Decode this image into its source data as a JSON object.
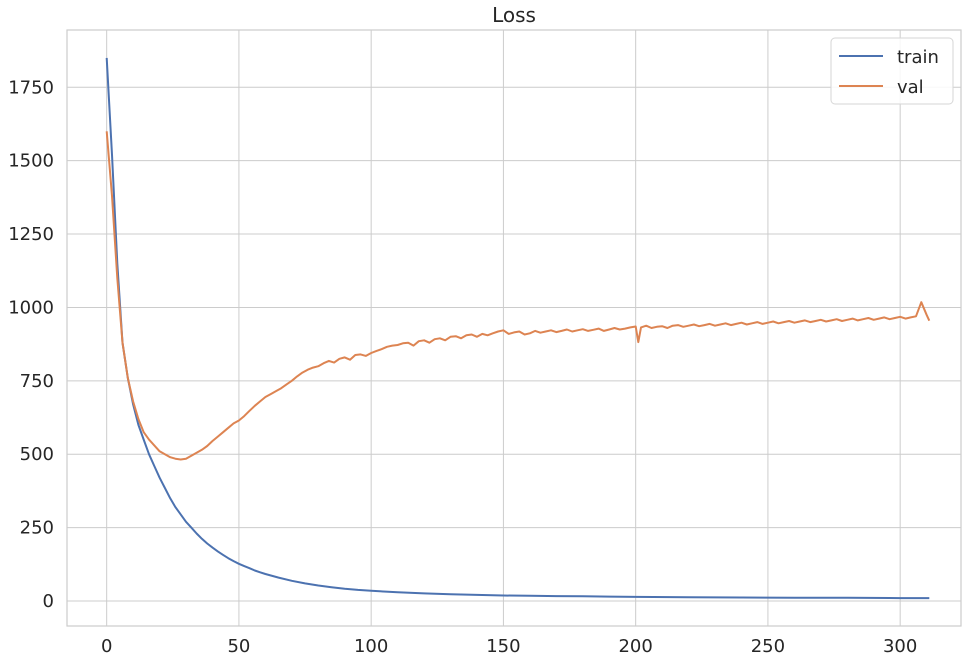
{
  "chart_data": {
    "type": "line",
    "title": "Loss",
    "xlabel": "",
    "ylabel": "",
    "xlim": [
      -15,
      323
    ],
    "ylim": [
      -85,
      1945
    ],
    "xticks": [
      0,
      50,
      100,
      150,
      200,
      250,
      300
    ],
    "yticks": [
      0,
      250,
      500,
      750,
      1000,
      1250,
      1500,
      1750
    ],
    "grid": true,
    "legend_position": "top-right",
    "series": [
      {
        "name": "train",
        "color": "#4c72b0",
        "points": [
          [
            0,
            1850
          ],
          [
            2,
            1520
          ],
          [
            4,
            1150
          ],
          [
            6,
            880
          ],
          [
            8,
            760
          ],
          [
            10,
            670
          ],
          [
            12,
            600
          ],
          [
            14,
            550
          ],
          [
            16,
            500
          ],
          [
            18,
            460
          ],
          [
            20,
            420
          ],
          [
            22,
            385
          ],
          [
            24,
            350
          ],
          [
            26,
            320
          ],
          [
            28,
            295
          ],
          [
            30,
            270
          ],
          [
            32,
            250
          ],
          [
            34,
            230
          ],
          [
            36,
            212
          ],
          [
            38,
            196
          ],
          [
            40,
            182
          ],
          [
            42,
            169
          ],
          [
            44,
            157
          ],
          [
            46,
            146
          ],
          [
            48,
            136
          ],
          [
            50,
            127
          ],
          [
            52,
            119
          ],
          [
            54,
            112
          ],
          [
            56,
            104
          ],
          [
            58,
            98
          ],
          [
            60,
            92
          ],
          [
            65,
            80
          ],
          [
            70,
            69
          ],
          [
            75,
            60
          ],
          [
            80,
            53
          ],
          [
            85,
            47
          ],
          [
            90,
            42
          ],
          [
            95,
            38
          ],
          [
            100,
            35
          ],
          [
            110,
            30
          ],
          [
            120,
            26
          ],
          [
            130,
            23
          ],
          [
            140,
            21
          ],
          [
            150,
            19
          ],
          [
            160,
            18
          ],
          [
            170,
            17
          ],
          [
            180,
            16
          ],
          [
            190,
            15
          ],
          [
            200,
            14
          ],
          [
            220,
            13
          ],
          [
            240,
            12
          ],
          [
            260,
            11
          ],
          [
            280,
            11
          ],
          [
            300,
            10
          ],
          [
            311,
            10
          ]
        ]
      },
      {
        "name": "val",
        "color": "#dd8452",
        "points": [
          [
            0,
            1600
          ],
          [
            2,
            1380
          ],
          [
            4,
            1100
          ],
          [
            6,
            880
          ],
          [
            8,
            760
          ],
          [
            10,
            680
          ],
          [
            12,
            620
          ],
          [
            14,
            575
          ],
          [
            16,
            550
          ],
          [
            18,
            530
          ],
          [
            20,
            510
          ],
          [
            22,
            500
          ],
          [
            24,
            490
          ],
          [
            26,
            485
          ],
          [
            28,
            482
          ],
          [
            30,
            485
          ],
          [
            32,
            495
          ],
          [
            34,
            505
          ],
          [
            36,
            515
          ],
          [
            38,
            528
          ],
          [
            40,
            545
          ],
          [
            42,
            560
          ],
          [
            44,
            575
          ],
          [
            46,
            590
          ],
          [
            48,
            605
          ],
          [
            50,
            615
          ],
          [
            52,
            630
          ],
          [
            54,
            648
          ],
          [
            56,
            665
          ],
          [
            58,
            680
          ],
          [
            60,
            695
          ],
          [
            62,
            705
          ],
          [
            64,
            715
          ],
          [
            66,
            725
          ],
          [
            68,
            738
          ],
          [
            70,
            750
          ],
          [
            72,
            765
          ],
          [
            74,
            778
          ],
          [
            76,
            788
          ],
          [
            78,
            795
          ],
          [
            80,
            800
          ],
          [
            82,
            810
          ],
          [
            84,
            818
          ],
          [
            86,
            812
          ],
          [
            88,
            825
          ],
          [
            90,
            830
          ],
          [
            92,
            822
          ],
          [
            94,
            838
          ],
          [
            96,
            840
          ],
          [
            98,
            835
          ],
          [
            100,
            845
          ],
          [
            102,
            852
          ],
          [
            104,
            858
          ],
          [
            106,
            866
          ],
          [
            108,
            870
          ],
          [
            110,
            872
          ],
          [
            112,
            878
          ],
          [
            114,
            880
          ],
          [
            116,
            870
          ],
          [
            118,
            885
          ],
          [
            120,
            888
          ],
          [
            122,
            880
          ],
          [
            124,
            892
          ],
          [
            126,
            895
          ],
          [
            128,
            888
          ],
          [
            130,
            900
          ],
          [
            132,
            902
          ],
          [
            134,
            895
          ],
          [
            136,
            905
          ],
          [
            138,
            908
          ],
          [
            140,
            900
          ],
          [
            142,
            910
          ],
          [
            144,
            905
          ],
          [
            146,
            912
          ],
          [
            148,
            918
          ],
          [
            150,
            922
          ],
          [
            152,
            910
          ],
          [
            154,
            915
          ],
          [
            156,
            918
          ],
          [
            158,
            908
          ],
          [
            160,
            912
          ],
          [
            162,
            920
          ],
          [
            164,
            914
          ],
          [
            166,
            918
          ],
          [
            168,
            922
          ],
          [
            170,
            916
          ],
          [
            172,
            920
          ],
          [
            174,
            925
          ],
          [
            176,
            918
          ],
          [
            178,
            922
          ],
          [
            180,
            926
          ],
          [
            182,
            920
          ],
          [
            184,
            924
          ],
          [
            186,
            928
          ],
          [
            188,
            920
          ],
          [
            190,
            925
          ],
          [
            192,
            930
          ],
          [
            194,
            925
          ],
          [
            196,
            928
          ],
          [
            198,
            932
          ],
          [
            200,
            935
          ],
          [
            201,
            882
          ],
          [
            202,
            932
          ],
          [
            204,
            938
          ],
          [
            206,
            930
          ],
          [
            208,
            934
          ],
          [
            210,
            936
          ],
          [
            212,
            930
          ],
          [
            214,
            938
          ],
          [
            216,
            940
          ],
          [
            218,
            934
          ],
          [
            220,
            938
          ],
          [
            222,
            942
          ],
          [
            224,
            936
          ],
          [
            226,
            940
          ],
          [
            228,
            944
          ],
          [
            230,
            938
          ],
          [
            232,
            942
          ],
          [
            234,
            946
          ],
          [
            236,
            940
          ],
          [
            238,
            944
          ],
          [
            240,
            948
          ],
          [
            242,
            942
          ],
          [
            244,
            946
          ],
          [
            246,
            950
          ],
          [
            248,
            944
          ],
          [
            250,
            948
          ],
          [
            252,
            952
          ],
          [
            254,
            946
          ],
          [
            256,
            950
          ],
          [
            258,
            954
          ],
          [
            260,
            948
          ],
          [
            262,
            952
          ],
          [
            264,
            956
          ],
          [
            266,
            950
          ],
          [
            268,
            954
          ],
          [
            270,
            958
          ],
          [
            272,
            952
          ],
          [
            274,
            956
          ],
          [
            276,
            960
          ],
          [
            278,
            954
          ],
          [
            280,
            958
          ],
          [
            282,
            962
          ],
          [
            284,
            956
          ],
          [
            286,
            960
          ],
          [
            288,
            964
          ],
          [
            290,
            958
          ],
          [
            292,
            962
          ],
          [
            294,
            966
          ],
          [
            296,
            960
          ],
          [
            298,
            964
          ],
          [
            300,
            968
          ],
          [
            302,
            962
          ],
          [
            304,
            966
          ],
          [
            306,
            970
          ],
          [
            308,
            1018
          ],
          [
            310,
            975
          ],
          [
            311,
            955
          ]
        ]
      }
    ]
  }
}
